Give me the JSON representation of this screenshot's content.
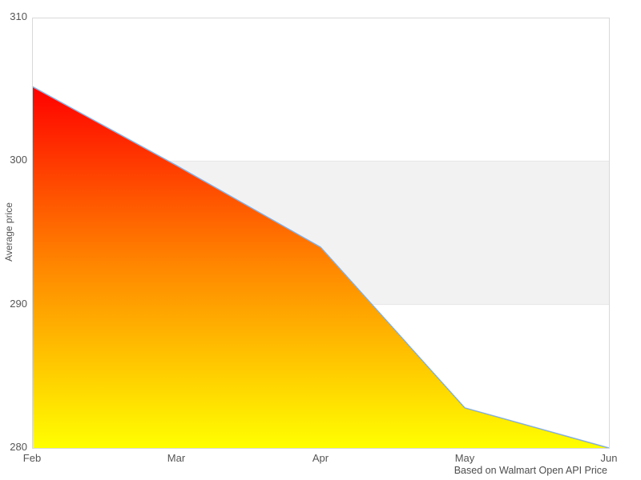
{
  "chart_data": {
    "type": "area",
    "x": [
      "Feb",
      "Mar",
      "Apr",
      "May",
      "Jun"
    ],
    "values": [
      305.2,
      299.7,
      294.0,
      282.8,
      280.0
    ],
    "series_name": "Average price",
    "title": "",
    "xlabel": "",
    "ylabel": "Average price",
    "caption": "Based on Walmart Open API Price",
    "ylim": [
      280,
      310
    ],
    "y_ticks": [
      "310",
      "300",
      "290",
      "280"
    ],
    "y_tick_values": [
      310,
      300,
      290,
      280
    ],
    "x_ticks": [
      "Feb",
      "Mar",
      "Apr",
      "May",
      "Jun"
    ],
    "plot_band": {
      "from": 290,
      "to": 300
    },
    "grid": false,
    "legend": false
  },
  "colors": {
    "line": "#86aede",
    "area_gradient_top": "#ff0000",
    "area_gradient_mid": "#ff8800",
    "area_gradient_bottom": "#ffff00",
    "plot_band_fill": "#f2f2f2",
    "plot_band_edge": "#e6e6e6",
    "plot_border": "#d9d9d9",
    "text": "#555555"
  }
}
